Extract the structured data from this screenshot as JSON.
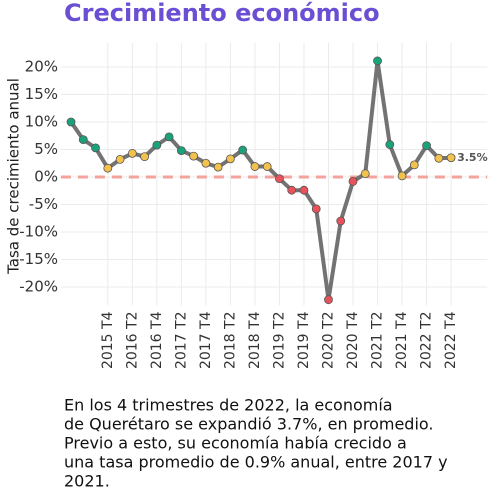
{
  "chart_data": {
    "type": "line",
    "title": "Crecimiento económico",
    "title_color": "#6a4fd4",
    "y_label": "Tasa de crecimiento anual",
    "categories": [
      null,
      null,
      null,
      "2015 T4",
      null,
      "2016 T2",
      null,
      "2016 T4",
      null,
      "2017 T2",
      null,
      "2017 T4",
      null,
      "2018 T2",
      null,
      "2018 T4",
      null,
      "2019 T2",
      null,
      "2019 T4",
      null,
      "2020 T2",
      null,
      "2020 T4",
      null,
      "2021 T2",
      null,
      "2021 T4",
      null,
      "2022 T2",
      null,
      "2022 T4"
    ],
    "series": [
      {
        "name": "Crecimiento",
        "color": "#737373",
        "values": [
          10.0,
          6.8,
          5.3,
          1.6,
          3.2,
          4.3,
          3.7,
          5.8,
          7.3,
          4.8,
          3.8,
          2.5,
          1.8,
          3.3,
          4.9,
          1.9,
          1.9,
          -0.3,
          -2.4,
          -2.4,
          -5.8,
          -22.3,
          -8.0,
          -0.8,
          0.6,
          21.1,
          5.9,
          0.2,
          2.2,
          5.7,
          3.4,
          3.5
        ],
        "value_labels": [
          null,
          null,
          null,
          null,
          null,
          null,
          null,
          null,
          null,
          null,
          null,
          null,
          null,
          null,
          null,
          null,
          null,
          null,
          null,
          null,
          null,
          null,
          null,
          null,
          null,
          null,
          null,
          null,
          null,
          null,
          null,
          "3.5%"
        ],
        "point_colors": [
          "#1aa37a",
          "#1aa37a",
          "#1aa37a",
          "#f2c14e",
          "#f2c14e",
          "#f2c14e",
          "#f2c14e",
          "#1aa37a",
          "#1aa37a",
          "#1aa37a",
          "#f2c14e",
          "#f2c14e",
          "#f2c14e",
          "#f2c14e",
          "#1aa37a",
          "#f2c14e",
          "#f2c14e",
          "#e8525a",
          "#e8525a",
          "#e8525a",
          "#e8525a",
          "#e8525a",
          "#e8525a",
          "#e8525a",
          "#f2c14e",
          "#1aa37a",
          "#1aa37a",
          "#f2c14e",
          "#f2c14e",
          "#1aa37a",
          "#f2c14e",
          "#f2c14e"
        ]
      }
    ],
    "ylim": [
      -23,
      23.5
    ],
    "yticks": [
      {
        "value": -20,
        "label": "-20%"
      },
      {
        "value": -15,
        "label": "-15%"
      },
      {
        "value": -10,
        "label": "-10%"
      },
      {
        "value": -5,
        "label": "-5%"
      },
      {
        "value": 0,
        "label": "0%"
      },
      {
        "value": 5,
        "label": "5%"
      },
      {
        "value": 10,
        "label": "10%"
      },
      {
        "value": 15,
        "label": "15%"
      },
      {
        "value": 20,
        "label": "20%"
      }
    ],
    "grid": true,
    "hline": {
      "value": 0,
      "color": "#f4a39c"
    },
    "note_lines": [
      "En los 4 trimestres de 2022, la economía",
      "de Querétaro se expandió 3.7%, en promedio.",
      "Previo a esto, su economía había crecido a",
      "una tasa promedio de 0.9% anual, entre 2017 y",
      "2021."
    ]
  }
}
